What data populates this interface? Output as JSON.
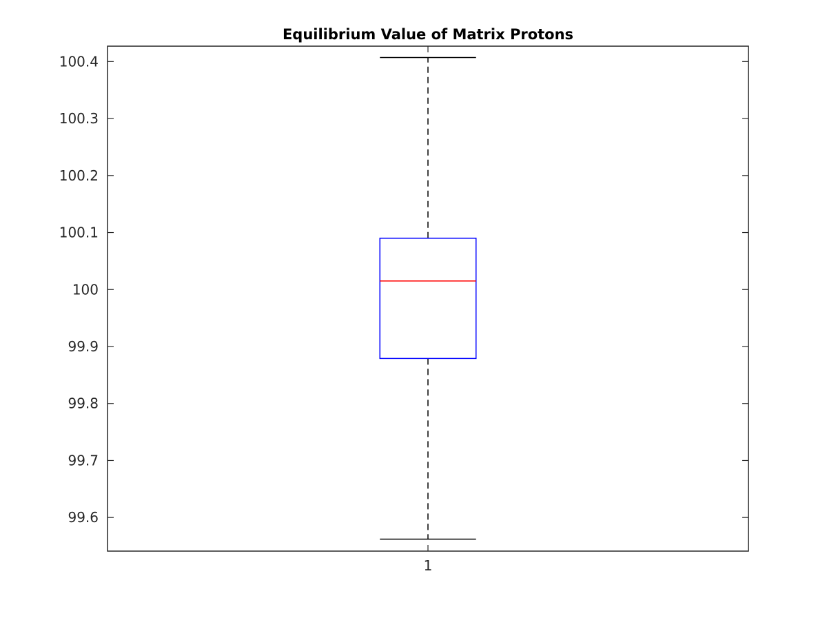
{
  "chart_data": {
    "type": "boxplot",
    "title": "Equilibrium Value of Matrix Protons",
    "xlabel": "",
    "ylabel": "",
    "categories": [
      "1"
    ],
    "boxes": [
      {
        "category": "1",
        "whisker_low": 99.562,
        "q1": 99.879,
        "median": 100.015,
        "q3": 100.09,
        "whisker_high": 100.407
      }
    ],
    "ylim": [
      99.541,
      100.427
    ],
    "yticks": [
      99.6,
      99.7,
      99.8,
      99.9,
      100,
      100.1,
      100.2,
      100.3,
      100.4
    ],
    "ytick_labels": [
      "99.6",
      "99.7",
      "99.8",
      "99.9",
      "100",
      "100.1",
      "100.2",
      "100.3",
      "100.4"
    ],
    "grid": false,
    "legend": "none",
    "colors": {
      "box": "#0000ff",
      "median": "#ff0000",
      "whisker": "#000000",
      "axes": "#262626"
    }
  }
}
